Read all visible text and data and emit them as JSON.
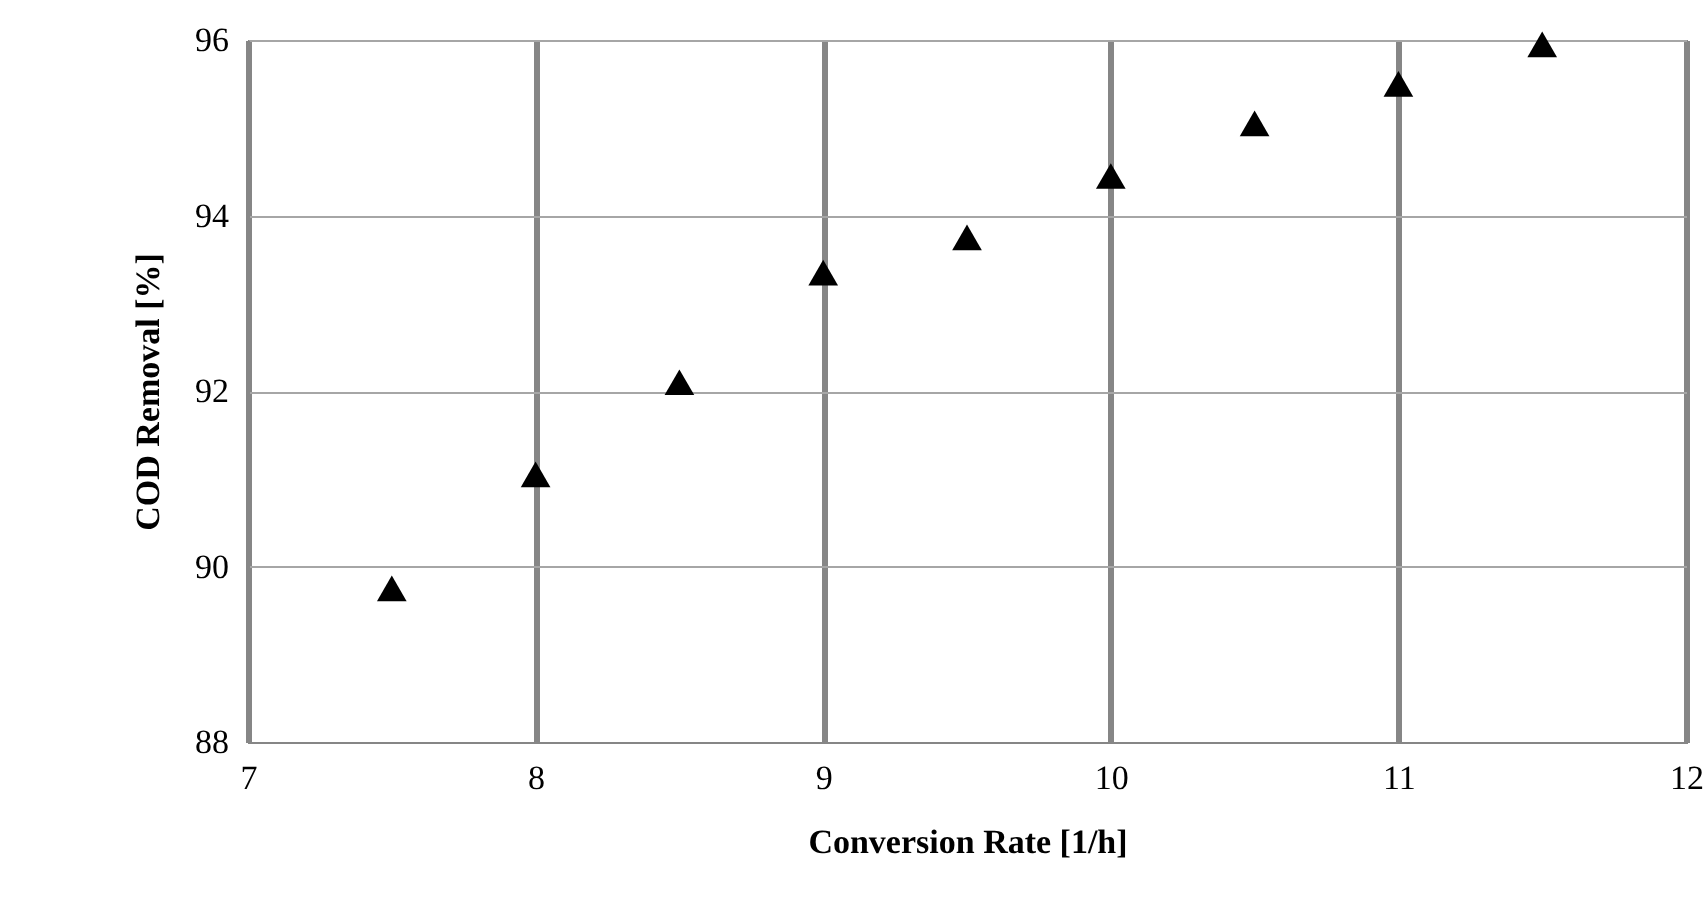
{
  "chart_data": {
    "type": "scatter",
    "xlabel": "Conversion Rate [1/h]",
    "ylabel": "COD Removal [%]",
    "x": [
      7.5,
      8,
      8.5,
      9,
      9.5,
      10,
      10.5,
      11,
      11.5
    ],
    "series": [
      {
        "color": "#000000",
        "values": [
          89.75,
          91.05,
          92.1,
          93.35,
          93.75,
          94.45,
          95.05,
          95.5,
          95.95
        ]
      }
    ],
    "xlim": [
      7,
      12
    ],
    "xticks": [
      7,
      8,
      9,
      10,
      11,
      12
    ],
    "ylim": [
      88,
      96
    ],
    "yticks": [
      88,
      90,
      92,
      94,
      96
    ],
    "grid": true,
    "marker": "triangle"
  }
}
